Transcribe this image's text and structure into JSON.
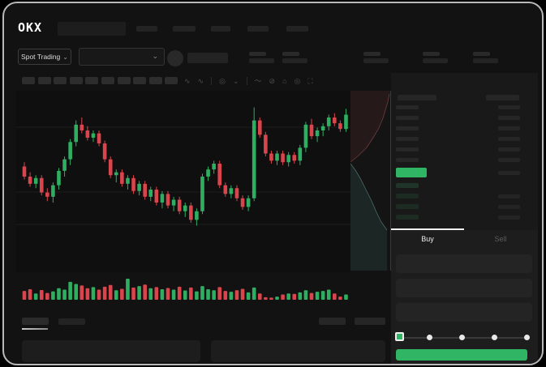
{
  "colors": {
    "green": "#2fb563",
    "red": "#d9454c",
    "candle_green": "#2fae62",
    "candle_red": "#d9454c",
    "depth_ask_line": "#a05858",
    "depth_ask_fill": "rgba(150,60,60,0.14)",
    "depth_bid_line": "#5c8f84",
    "depth_bid_fill": "rgba(58,110,98,0.20)",
    "grid": "#1e1e1e"
  },
  "header": {
    "logo_text": "OKX",
    "market_selector_label": "Spot Trading",
    "market_selector_chevron": "⌄",
    "pair_select_chevron": "⌄"
  },
  "toolbar": {
    "icons": [
      "trend-line-icon",
      "trend-line-dropdown-icon",
      "indicator-icon",
      "indicator-chevron-icon",
      "wave-tool-icon",
      "measure-icon",
      "camera-icon",
      "settings-icon",
      "fullscreen-icon"
    ],
    "glyphs": [
      "∿",
      "∿",
      "◎",
      "⌄",
      "〜",
      "⊘",
      "⌂",
      "◎",
      "⛶"
    ]
  },
  "orderbook": {
    "mode_icons": [
      "book-all-icon",
      "book-bids-icon",
      "book-asks-icon"
    ]
  },
  "trade_panel": {
    "tabs": [
      {
        "label": "Buy",
        "active": true
      },
      {
        "label": "Sell",
        "active": false
      }
    ],
    "slider": {
      "stops": 5,
      "selected_index": 0
    }
  },
  "chart_data": {
    "type": "candlestick",
    "title": "",
    "xlabel": "",
    "ylabel": "",
    "grid": "faint-horizontal",
    "price_range_norm": [
      0,
      100
    ],
    "candles_ohlc": [
      [
        57,
        60,
        48,
        50
      ],
      [
        50,
        53,
        43,
        45
      ],
      [
        45,
        51,
        42,
        49
      ],
      [
        49,
        51,
        37,
        39
      ],
      [
        39,
        42,
        33,
        36
      ],
      [
        36,
        46,
        32,
        44
      ],
      [
        44,
        56,
        41,
        54
      ],
      [
        54,
        64,
        50,
        62
      ],
      [
        62,
        76,
        58,
        74
      ],
      [
        74,
        89,
        71,
        86
      ],
      [
        86,
        91,
        80,
        82
      ],
      [
        82,
        85,
        75,
        77
      ],
      [
        77,
        82,
        74,
        80
      ],
      [
        80,
        82,
        71,
        73
      ],
      [
        73,
        75,
        60,
        62
      ],
      [
        62,
        64,
        49,
        51
      ],
      [
        51,
        55,
        46,
        53
      ],
      [
        53,
        55,
        43,
        45
      ],
      [
        45,
        51,
        41,
        49
      ],
      [
        49,
        51,
        38,
        40
      ],
      [
        40,
        47,
        37,
        45
      ],
      [
        45,
        47,
        34,
        36
      ],
      [
        36,
        43,
        33,
        41
      ],
      [
        41,
        43,
        30,
        32
      ],
      [
        32,
        40,
        28,
        38
      ],
      [
        38,
        40,
        28,
        30
      ],
      [
        30,
        36,
        26,
        34
      ],
      [
        34,
        36,
        24,
        26
      ],
      [
        26,
        32,
        22,
        30
      ],
      [
        30,
        32,
        18,
        20
      ],
      [
        20,
        28,
        16,
        26
      ],
      [
        26,
        52,
        24,
        50
      ],
      [
        50,
        57,
        47,
        55
      ],
      [
        55,
        61,
        52,
        59
      ],
      [
        59,
        61,
        42,
        44
      ],
      [
        44,
        46,
        36,
        38
      ],
      [
        38,
        44,
        35,
        42
      ],
      [
        42,
        44,
        33,
        35
      ],
      [
        35,
        37,
        27,
        29
      ],
      [
        29,
        37,
        26,
        35
      ],
      [
        35,
        98,
        33,
        89
      ],
      [
        89,
        91,
        77,
        79
      ],
      [
        79,
        81,
        64,
        66
      ],
      [
        66,
        68,
        59,
        61
      ],
      [
        61,
        68,
        58,
        66
      ],
      [
        66,
        68,
        58,
        60
      ],
      [
        60,
        67,
        57,
        65
      ],
      [
        65,
        67,
        59,
        61
      ],
      [
        61,
        72,
        58,
        70
      ],
      [
        70,
        88,
        67,
        86
      ],
      [
        86,
        90,
        76,
        78
      ],
      [
        78,
        84,
        74,
        82
      ],
      [
        82,
        87,
        78,
        85
      ],
      [
        85,
        93,
        82,
        91
      ],
      [
        91,
        94,
        85,
        87
      ],
      [
        87,
        89,
        81,
        83
      ],
      [
        83,
        97,
        81,
        93
      ]
    ],
    "volumes": [
      42,
      50,
      30,
      46,
      32,
      40,
      55,
      48,
      85,
      75,
      68,
      55,
      60,
      48,
      62,
      70,
      45,
      52,
      100,
      58,
      65,
      72,
      55,
      60,
      50,
      56,
      48,
      62,
      44,
      58,
      40,
      65,
      50,
      45,
      60,
      42,
      38,
      45,
      52,
      35,
      58,
      30,
      12,
      10,
      15,
      25,
      30,
      28,
      35,
      45,
      32,
      38,
      42,
      48,
      30,
      15,
      25
    ],
    "depth": {
      "asks_curve": [
        [
          48,
          4
        ],
        [
          46,
          14
        ],
        [
          43,
          24
        ],
        [
          40,
          34
        ],
        [
          35,
          46
        ],
        [
          28,
          58
        ],
        [
          20,
          70
        ],
        [
          10,
          80
        ],
        [
          0,
          88
        ]
      ],
      "bids_curve": [
        [
          0,
          90
        ],
        [
          6,
          98
        ],
        [
          12,
          108
        ],
        [
          18,
          120
        ],
        [
          26,
          136
        ],
        [
          32,
          150
        ],
        [
          38,
          162
        ],
        [
          45,
          172
        ]
      ]
    }
  },
  "skeleton": {
    "note": "gray placeholder bars, no text rendered",
    "nav_bars": 5,
    "stat_groups": 5,
    "toolbar_squares": 10,
    "ask_rows": 6,
    "bid_rows": 4,
    "input_fields": 3,
    "bottom_tabs": 2,
    "bottom_right_bars": 2,
    "bottom_panels": 2
  }
}
